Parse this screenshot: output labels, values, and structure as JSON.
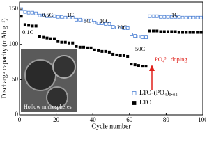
{
  "chart_data": {
    "type": "scatter",
    "x_label": "Cycle number",
    "y_label": "Discharge capacity (mAh g⁻¹)",
    "xlim": [
      0,
      100
    ],
    "xticks": [
      0,
      20,
      40,
      60,
      80,
      100
    ],
    "ylim": [
      0,
      160
    ],
    "yticks": [
      0,
      50,
      100,
      150
    ],
    "x": [
      1,
      3,
      5,
      7,
      9,
      11,
      13,
      15,
      17,
      19,
      21,
      23,
      25,
      27,
      29,
      31,
      33,
      35,
      37,
      39,
      41,
      43,
      45,
      47,
      49,
      51,
      53,
      55,
      57,
      59,
      61,
      63,
      65,
      67,
      69,
      71,
      73,
      75,
      77,
      79,
      81,
      83,
      85,
      87,
      89,
      91,
      93,
      95,
      97,
      99
    ],
    "series": [
      {
        "name": "LTO-(PO₄)₀.₀₂",
        "color": "#4a7fd4",
        "marker": "open-square",
        "values": [
          150,
          146,
          145,
          145,
          144,
          141,
          141,
          140,
          140,
          140,
          139,
          139,
          138,
          138,
          138,
          135,
          135,
          134,
          134,
          134,
          131,
          130,
          130,
          129,
          129,
          125,
          124,
          124,
          123,
          123,
          114,
          112,
          111,
          110,
          110,
          140,
          140,
          140,
          139,
          139,
          139,
          139,
          139,
          139,
          138,
          138,
          138,
          138,
          138,
          138
        ]
      },
      {
        "name": "LTO",
        "color": "#000000",
        "marker": "filled-square",
        "values": [
          140,
          128,
          127,
          126,
          126,
          111,
          110,
          109,
          108,
          108,
          104,
          103,
          103,
          102,
          102,
          97,
          96,
          96,
          95,
          95,
          92,
          91,
          90,
          90,
          89,
          86,
          85,
          84,
          84,
          83,
          72,
          71,
          70,
          69,
          69,
          119,
          119,
          119,
          118,
          118,
          118,
          118,
          118,
          117,
          117,
          117,
          117,
          117,
          117,
          117
        ]
      }
    ],
    "annotations": [
      "0.1C",
      "0.5C",
      "1C",
      "5C",
      "10C",
      "20C",
      "50C",
      "1C",
      "PO₄³⁻ doping"
    ],
    "inset_label": "Hollow microspheres",
    "legend": "lower right"
  }
}
